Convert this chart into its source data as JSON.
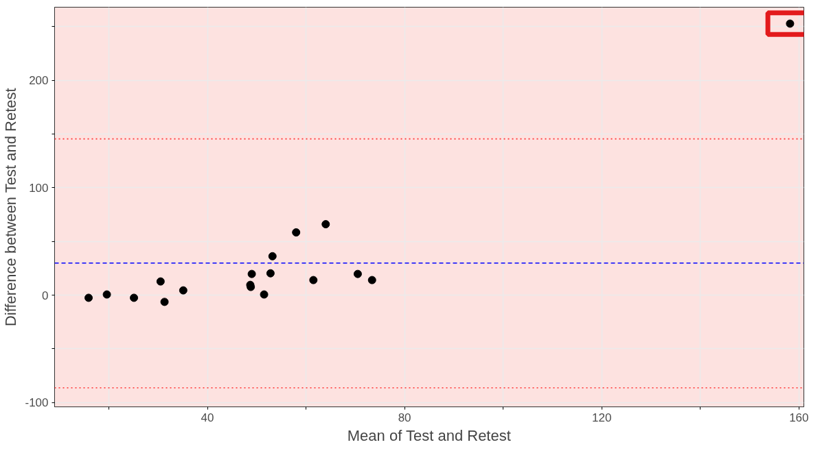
{
  "chart_data": {
    "type": "scatter",
    "xlabel": "Mean of Test and Retest",
    "ylabel": "Difference between Test and Retest",
    "x": [
      15.9,
      19.6,
      25.1,
      30.5,
      31.3,
      35.1,
      48.7,
      48.8,
      49.0,
      51.5,
      52.8,
      53.2,
      58.0,
      61.5,
      64.0,
      70.5,
      73.4,
      158.2
    ],
    "series": [
      {
        "color": "#000000",
        "values": [
          -2.5,
          0.6,
          -2.5,
          12.7,
          -6.3,
          4.4,
          9.5,
          7.6,
          19.7,
          0.6,
          20.3,
          36.2,
          58.4,
          14.0,
          66.0,
          19.7,
          14.0,
          252.7
        ]
      }
    ],
    "marker": "circle",
    "xlim": [
      9,
      161
    ],
    "ylim": [
      -104,
      268
    ],
    "xticks": [
      {
        "value": 20,
        "label": null
      },
      40,
      {
        "value": 60,
        "label": null
      },
      80,
      {
        "value": 100,
        "label": null
      },
      120,
      {
        "value": 140,
        "label": null
      },
      160
    ],
    "yticks": [
      -100,
      {
        "value": -50,
        "label": null
      },
      0,
      {
        "value": 50,
        "label": null
      },
      100,
      {
        "value": 150,
        "label": null
      },
      200,
      {
        "value": 250,
        "label": null
      }
    ],
    "grid": true,
    "ref_lines": [
      {
        "axis": "y",
        "value": 29.8,
        "color": "#0000ff",
        "line_style": "dashed"
      },
      {
        "axis": "y",
        "value": 145.4,
        "color": "#ff3333",
        "line_style": "dotted"
      },
      {
        "axis": "y",
        "value": -86.3,
        "color": "#ff3333",
        "line_style": "dotted"
      }
    ]
  }
}
